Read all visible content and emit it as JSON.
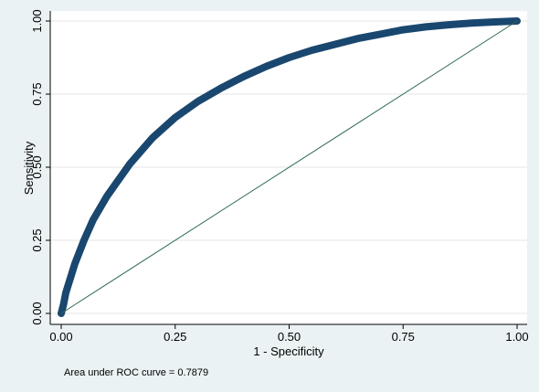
{
  "chart_data": {
    "type": "line",
    "xlabel": "1 - Specificity",
    "ylabel": "Sensitivity",
    "xlim": [
      0,
      1
    ],
    "ylim": [
      0,
      1
    ],
    "x_ticks": [
      "0.00",
      "0.25",
      "0.50",
      "0.75",
      "1.00"
    ],
    "y_ticks": [
      "0.00",
      "0.25",
      "0.50",
      "0.75",
      "1.00"
    ],
    "grid": true,
    "note": "Area under ROC curve = 0.7879",
    "series": [
      {
        "role": "roc-curve",
        "color": "#1a476f",
        "x": [
          0,
          0.005,
          0.01,
          0.02,
          0.03,
          0.05,
          0.07,
          0.1,
          0.15,
          0.2,
          0.25,
          0.3,
          0.35,
          0.4,
          0.45,
          0.5,
          0.55,
          0.6,
          0.65,
          0.7,
          0.75,
          0.8,
          0.85,
          0.9,
          0.95,
          1
        ],
        "y": [
          0,
          0.03,
          0.07,
          0.12,
          0.17,
          0.25,
          0.32,
          0.4,
          0.51,
          0.6,
          0.67,
          0.725,
          0.77,
          0.81,
          0.845,
          0.875,
          0.9,
          0.92,
          0.94,
          0.955,
          0.97,
          0.98,
          0.987,
          0.993,
          0.997,
          1
        ]
      },
      {
        "role": "reference-line",
        "color": "#2d6a4f",
        "x": [
          0,
          1
        ],
        "y": [
          0,
          1
        ]
      }
    ]
  }
}
